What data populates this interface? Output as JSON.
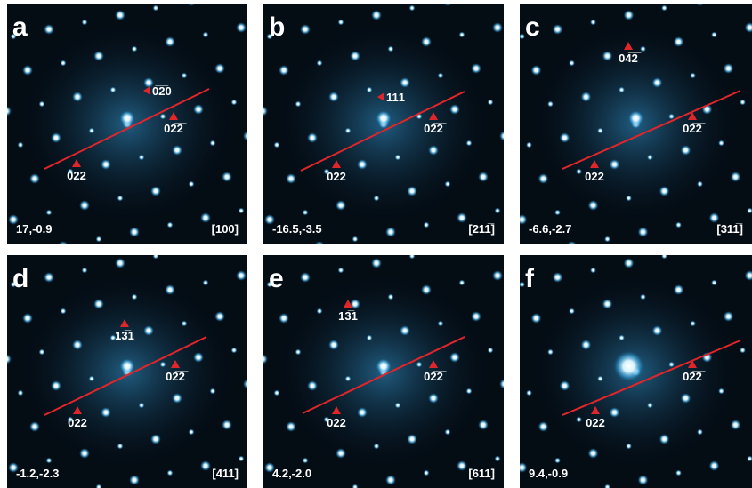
{
  "panels": [
    {
      "letter": "a",
      "tilt": "17,-0.9",
      "zone": "[100]",
      "labels": [
        {
          "text": "0̅2̅0"
        },
        {
          "text": "02̅2̅"
        },
        {
          "text": "022"
        }
      ]
    },
    {
      "letter": "b",
      "tilt": "-16.5,-3.5",
      "zone": "[211̅]",
      "labels": [
        {
          "text": "11̅1"
        },
        {
          "text": "02̅2̅"
        },
        {
          "text": "022"
        }
      ]
    },
    {
      "letter": "c",
      "tilt": "-6.6,-2.7",
      "zone": "[311̅]",
      "labels": [
        {
          "text": "04̅2̅"
        },
        {
          "text": "02̅2̅"
        },
        {
          "text": "022"
        }
      ]
    },
    {
      "letter": "d",
      "tilt": "-1.2,-2.3",
      "zone": "[411̅]",
      "labels": [
        {
          "text": "13̅1"
        },
        {
          "text": "02̅2̅"
        },
        {
          "text": "022"
        }
      ]
    },
    {
      "letter": "e",
      "tilt": "4.2,-2.0",
      "zone": "[611̅]",
      "labels": [
        {
          "text": "13̅1"
        },
        {
          "text": "02̅2̅"
        },
        {
          "text": "022"
        }
      ]
    },
    {
      "letter": "f",
      "tilt": "9.4,-0.9",
      "labels": [
        {
          "text": "02̅2̅"
        },
        {
          "text": "022"
        }
      ]
    }
  ]
}
